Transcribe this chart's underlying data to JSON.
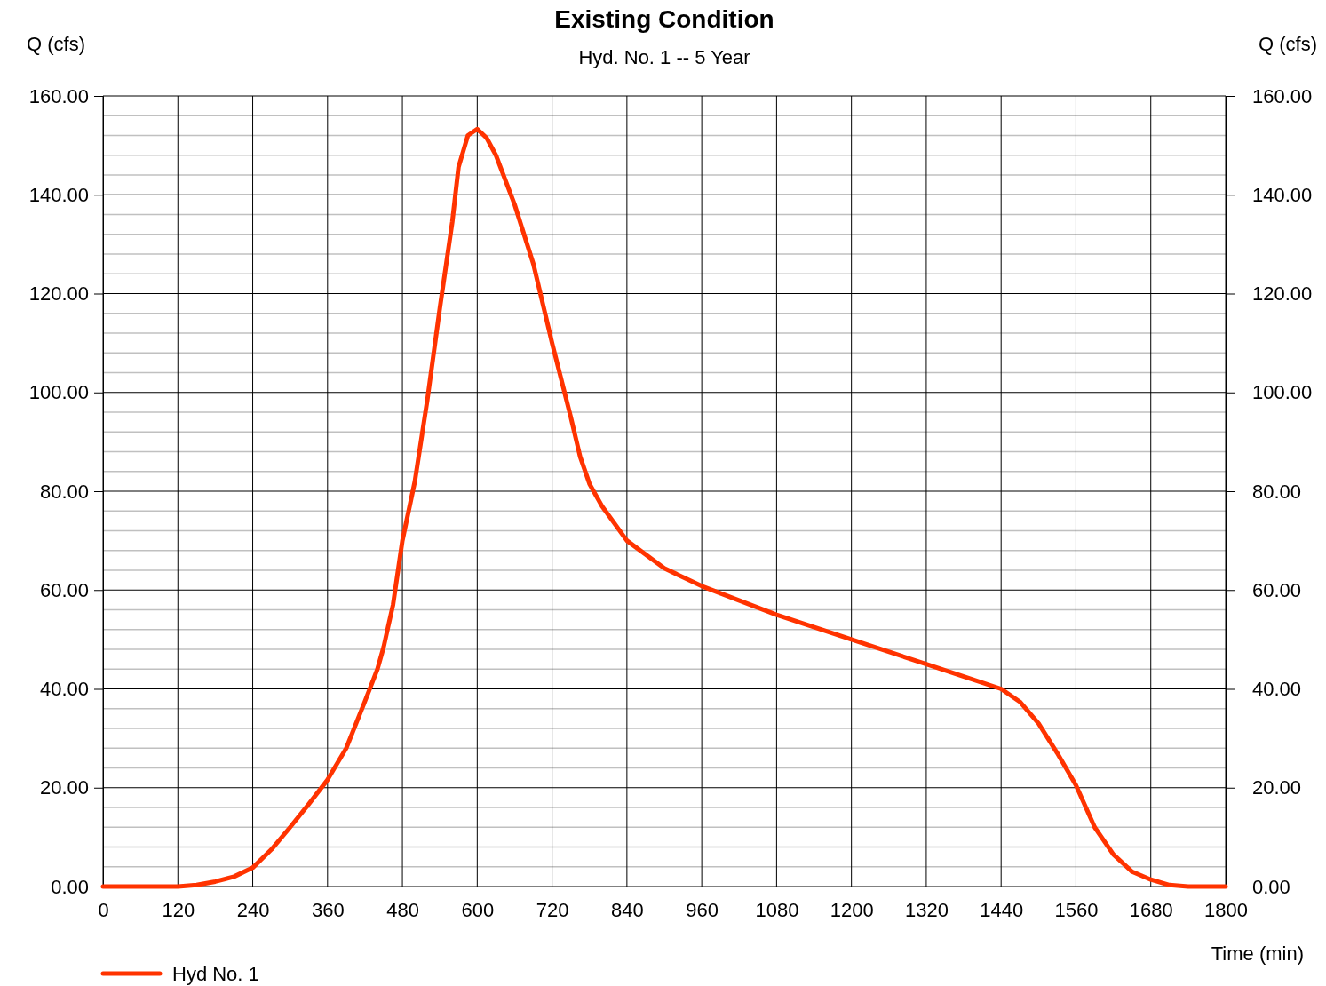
{
  "chart_data": {
    "type": "line",
    "title": "Existing Condition",
    "subtitle": "Hyd. No. 1 -- 5 Year",
    "xlabel": "Time (min)",
    "ylabel": "Q (cfs)",
    "y2label": "Q (cfs)",
    "xlim": [
      0,
      1800
    ],
    "xticks": [
      0,
      120,
      240,
      360,
      480,
      600,
      720,
      840,
      960,
      1080,
      1200,
      1320,
      1440,
      1560,
      1680,
      1800
    ],
    "ylim": [
      0,
      160
    ],
    "y2lim": [
      0,
      160
    ],
    "yticks": [
      {
        "value": 0,
        "label": "0.00"
      },
      {
        "value": 4,
        "label": null
      },
      {
        "value": 8,
        "label": null
      },
      {
        "value": 12,
        "label": null
      },
      {
        "value": 16,
        "label": null
      },
      {
        "value": 20,
        "label": "20.00"
      },
      {
        "value": 24,
        "label": null
      },
      {
        "value": 28,
        "label": null
      },
      {
        "value": 32,
        "label": null
      },
      {
        "value": 36,
        "label": null
      },
      {
        "value": 40,
        "label": "40.00"
      },
      {
        "value": 44,
        "label": null
      },
      {
        "value": 48,
        "label": null
      },
      {
        "value": 52,
        "label": null
      },
      {
        "value": 56,
        "label": null
      },
      {
        "value": 60,
        "label": "60.00"
      },
      {
        "value": 64,
        "label": null
      },
      {
        "value": 68,
        "label": null
      },
      {
        "value": 72,
        "label": null
      },
      {
        "value": 76,
        "label": null
      },
      {
        "value": 80,
        "label": "80.00"
      },
      {
        "value": 84,
        "label": null
      },
      {
        "value": 88,
        "label": null
      },
      {
        "value": 92,
        "label": null
      },
      {
        "value": 96,
        "label": null
      },
      {
        "value": 100,
        "label": "100.00"
      },
      {
        "value": 104,
        "label": null
      },
      {
        "value": 108,
        "label": null
      },
      {
        "value": 112,
        "label": null
      },
      {
        "value": 116,
        "label": null
      },
      {
        "value": 120,
        "label": "120.00"
      },
      {
        "value": 124,
        "label": null
      },
      {
        "value": 128,
        "label": null
      },
      {
        "value": 132,
        "label": null
      },
      {
        "value": 136,
        "label": null
      },
      {
        "value": 140,
        "label": "140.00"
      },
      {
        "value": 144,
        "label": null
      },
      {
        "value": 148,
        "label": null
      },
      {
        "value": 152,
        "label": null
      },
      {
        "value": 156,
        "label": null
      },
      {
        "value": 160,
        "label": "160.00"
      }
    ],
    "y2ticks": [
      {
        "value": 0,
        "label": "0.00"
      },
      {
        "value": 20,
        "label": "20.00"
      },
      {
        "value": 40,
        "label": "40.00"
      },
      {
        "value": 60,
        "label": "60.00"
      },
      {
        "value": 80,
        "label": "80.00"
      },
      {
        "value": 100,
        "label": "100.00"
      },
      {
        "value": 120,
        "label": "120.00"
      },
      {
        "value": 140,
        "label": "140.00"
      },
      {
        "value": 160,
        "label": "160.00"
      }
    ],
    "grid": true,
    "legend": "bottom left",
    "marker": "none",
    "line_style": "solid",
    "series": [
      {
        "name": "Hyd No. 1",
        "color": "#ff3300",
        "x": [
          0,
          60,
          120,
          150,
          180,
          210,
          240,
          270,
          300,
          330,
          360,
          390,
          420,
          440,
          450,
          457,
          465,
          480,
          500,
          520,
          540,
          560,
          570,
          585,
          600,
          615,
          630,
          645,
          660,
          690,
          720,
          750,
          765,
          780,
          800,
          840,
          900,
          960,
          1080,
          1200,
          1320,
          1440,
          1470,
          1500,
          1530,
          1560,
          1590,
          1620,
          1650,
          1680,
          1710,
          1740,
          1800
        ],
        "values": [
          0,
          0,
          0,
          0.3,
          1,
          2,
          3.8,
          7.5,
          12,
          16.7,
          21.6,
          28,
          37.5,
          44,
          48.5,
          52.5,
          57,
          70,
          82,
          98.5,
          117,
          134.5,
          145.6,
          152,
          153.3,
          151.5,
          148,
          143,
          138,
          126,
          110,
          95,
          87,
          81.5,
          77,
          70,
          64.4,
          60.8,
          55,
          50,
          45,
          40,
          37.4,
          33,
          27,
          20.5,
          12,
          6.5,
          3,
          1.4,
          0.3,
          0,
          0
        ]
      }
    ]
  }
}
